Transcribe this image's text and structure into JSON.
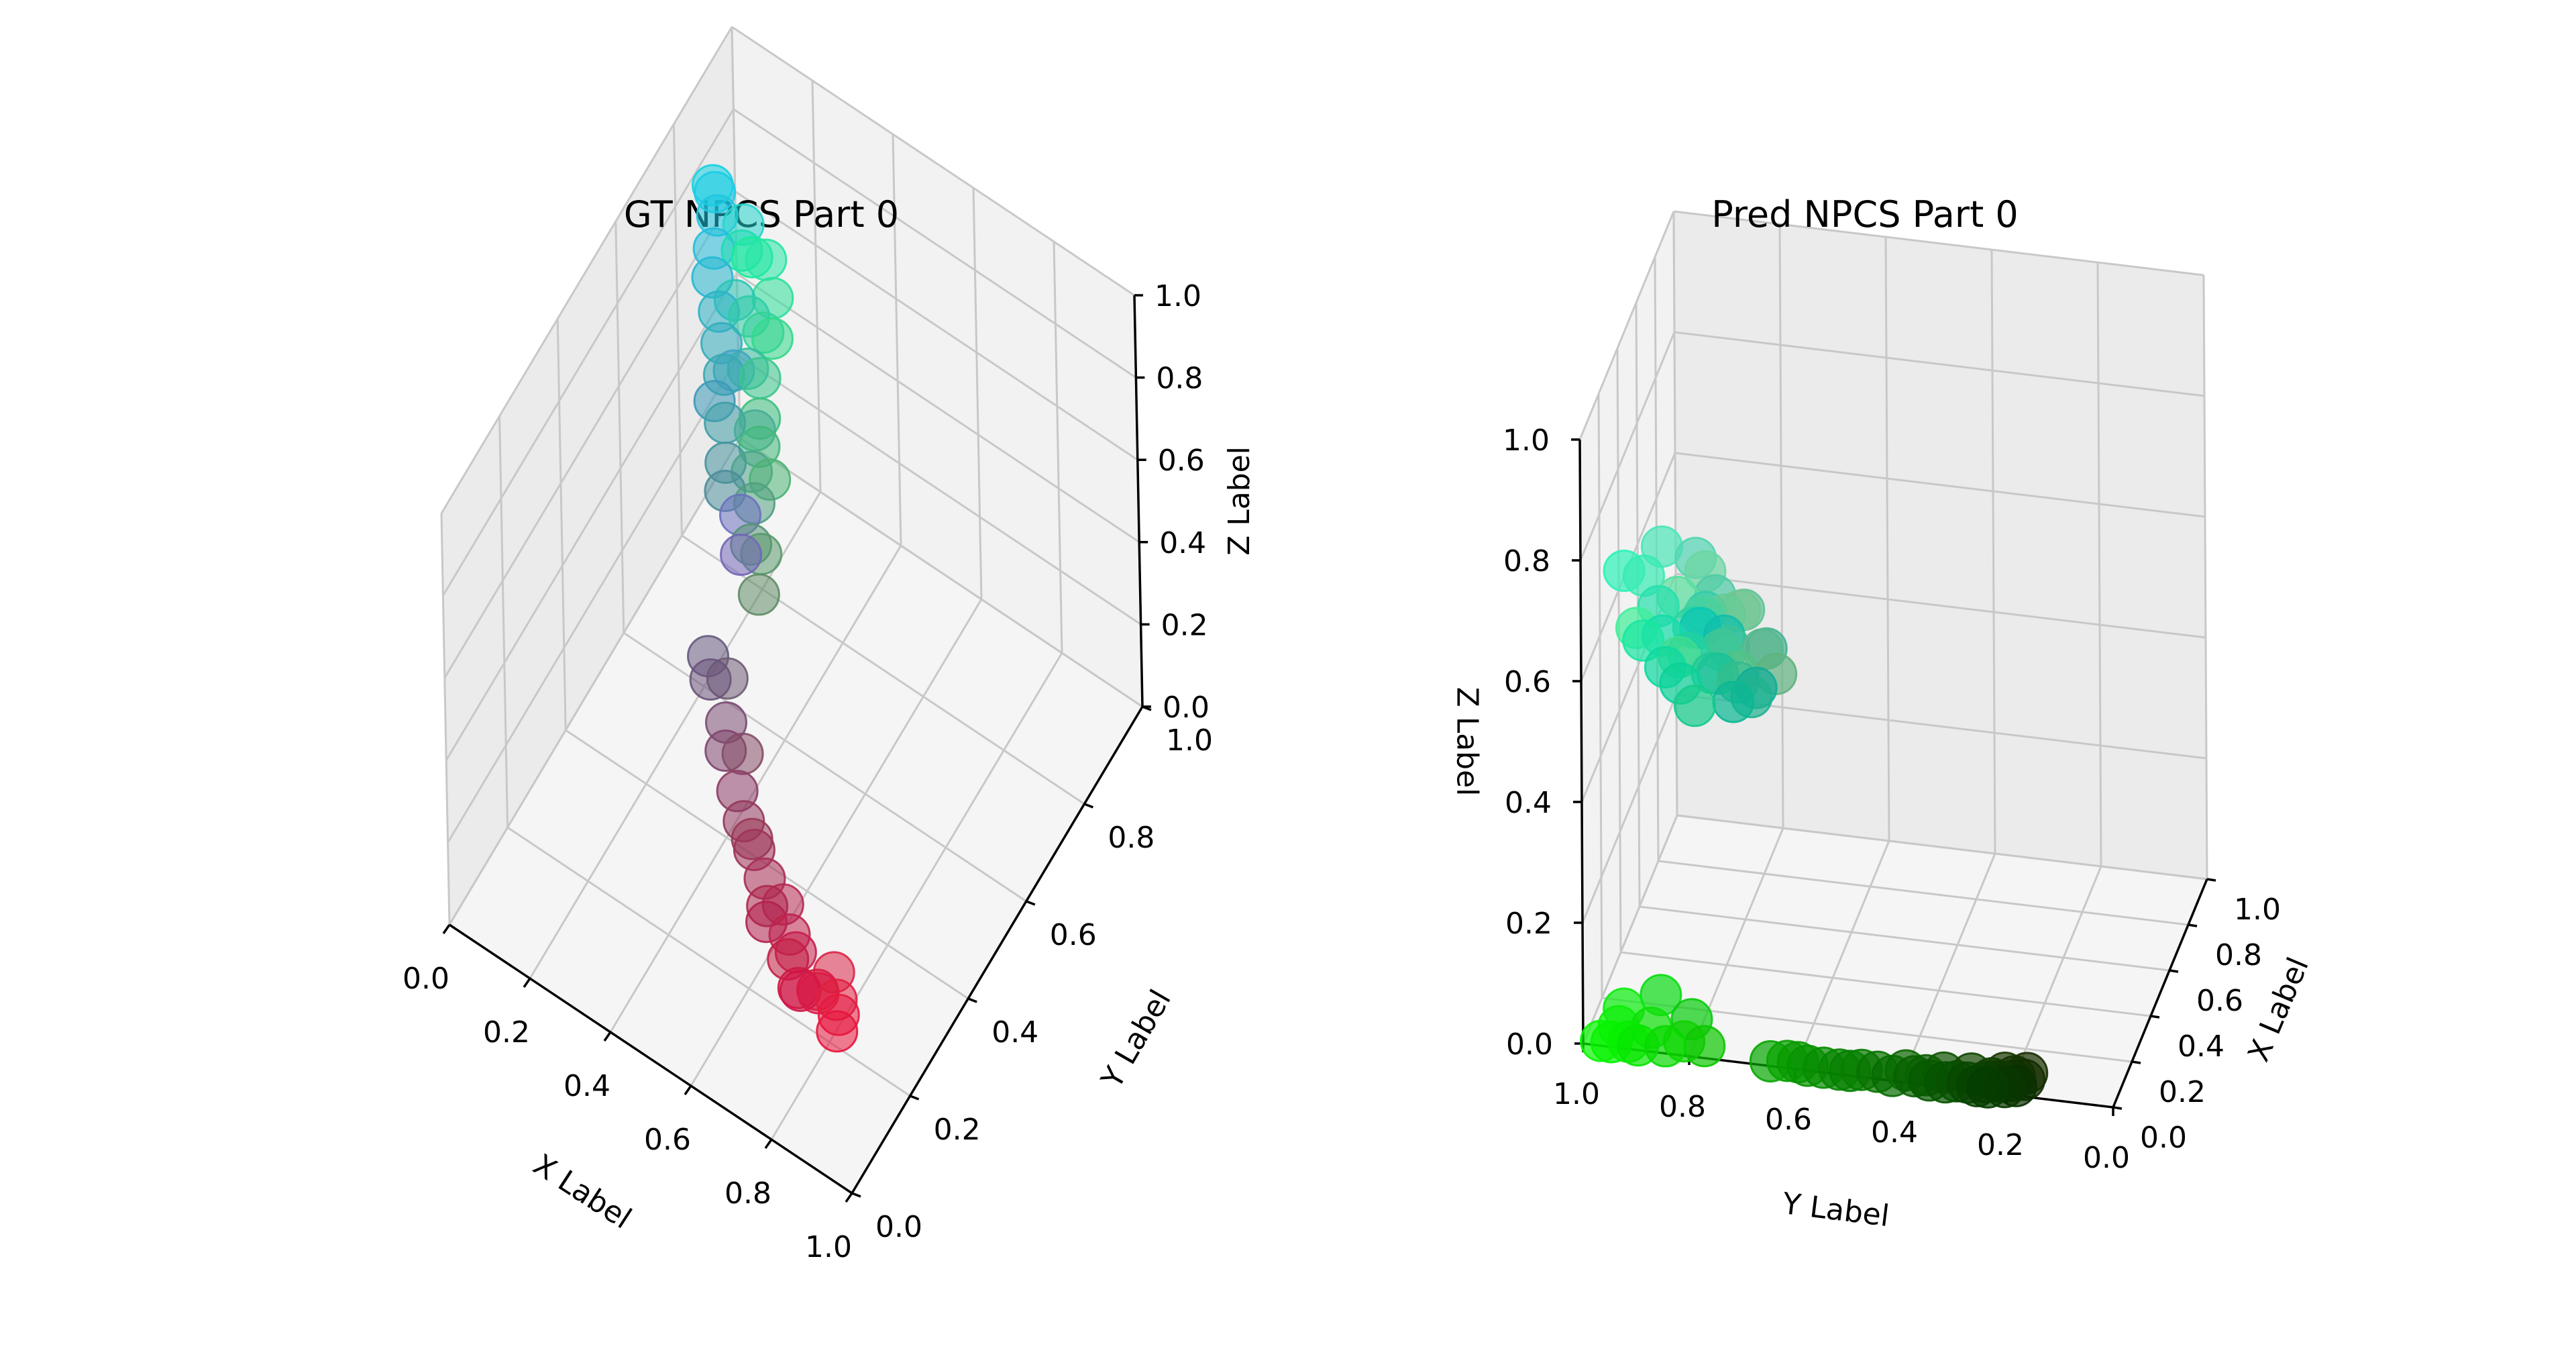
{
  "chart_data": [
    {
      "type": "scatter",
      "subtype": "3d",
      "title": "GT NPCS Part 0",
      "xlabel": "X Label",
      "ylabel": "Y Label",
      "zlabel": "Z Label",
      "xlim": [
        0,
        1
      ],
      "ylim": [
        0,
        1
      ],
      "zlim": [
        0,
        1
      ],
      "xticks": [
        "0.0",
        "0.2",
        "0.4",
        "0.6",
        "0.8",
        "1.0"
      ],
      "yticks": [
        "0.0",
        "0.2",
        "0.4",
        "0.6",
        "0.8",
        "1.0"
      ],
      "zticks": [
        "0.0",
        "0.2",
        "0.4",
        "0.6",
        "0.8",
        "1.0"
      ],
      "grid": true,
      "marker_alpha": 0.55,
      "point_coloring": "RGB equals (x, y, z) coordinates",
      "points": [
        [
          0.9,
          0.1,
          0.25
        ],
        [
          0.88,
          0.12,
          0.25
        ],
        [
          0.91,
          0.08,
          0.24
        ],
        [
          0.85,
          0.1,
          0.27
        ],
        [
          0.82,
          0.08,
          0.28
        ],
        [
          0.8,
          0.1,
          0.25
        ],
        [
          0.86,
          0.14,
          0.28
        ],
        [
          0.78,
          0.12,
          0.3
        ],
        [
          0.75,
          0.14,
          0.3
        ],
        [
          0.7,
          0.13,
          0.31
        ],
        [
          0.72,
          0.16,
          0.33
        ],
        [
          0.66,
          0.18,
          0.33
        ],
        [
          0.62,
          0.2,
          0.35
        ],
        [
          0.58,
          0.22,
          0.37
        ],
        [
          0.55,
          0.24,
          0.4
        ],
        [
          0.5,
          0.27,
          0.43
        ],
        [
          0.48,
          0.3,
          0.45
        ],
        [
          0.42,
          0.33,
          0.48
        ],
        [
          0.4,
          0.35,
          0.5
        ],
        [
          0.45,
          0.4,
          0.72
        ],
        [
          0.42,
          0.44,
          0.75
        ],
        [
          0.3,
          0.55,
          0.6
        ],
        [
          0.28,
          0.58,
          0.62
        ],
        [
          0.25,
          0.62,
          0.65
        ],
        [
          0.22,
          0.66,
          0.7
        ],
        [
          0.2,
          0.68,
          0.74
        ],
        [
          0.18,
          0.7,
          0.78
        ],
        [
          0.15,
          0.72,
          0.82
        ],
        [
          0.14,
          0.74,
          0.86
        ],
        [
          0.12,
          0.78,
          0.88
        ],
        [
          0.1,
          0.8,
          0.9
        ],
        [
          0.08,
          0.82,
          0.88
        ],
        [
          0.16,
          0.78,
          0.7
        ],
        [
          0.18,
          0.8,
          0.65
        ],
        [
          0.2,
          0.82,
          0.6
        ],
        [
          0.22,
          0.78,
          0.55
        ],
        [
          0.24,
          0.75,
          0.5
        ],
        [
          0.26,
          0.72,
          0.48
        ],
        [
          0.2,
          0.85,
          0.55
        ],
        [
          0.18,
          0.88,
          0.6
        ],
        [
          0.15,
          0.9,
          0.65
        ],
        [
          0.12,
          0.86,
          0.7
        ],
        [
          0.1,
          0.92,
          0.6
        ],
        [
          0.3,
          0.7,
          0.45
        ],
        [
          0.28,
          0.68,
          0.58
        ],
        [
          0.32,
          0.62,
          0.5
        ],
        [
          0.35,
          0.6,
          0.42
        ],
        [
          0.24,
          0.6,
          0.72
        ],
        [
          0.26,
          0.64,
          0.76
        ],
        [
          0.14,
          0.84,
          0.8
        ],
        [
          0.38,
          0.55,
          0.4
        ],
        [
          0.34,
          0.58,
          0.46
        ],
        [
          0.3,
          0.64,
          0.54
        ],
        [
          0.22,
          0.74,
          0.62
        ],
        [
          0.52,
          0.3,
          0.4
        ],
        [
          0.6,
          0.22,
          0.34
        ],
        [
          0.68,
          0.16,
          0.3
        ],
        [
          0.76,
          0.12,
          0.27
        ],
        [
          0.84,
          0.11,
          0.26
        ],
        [
          0.44,
          0.36,
          0.46
        ]
      ]
    },
    {
      "type": "scatter",
      "subtype": "3d",
      "title": "Pred NPCS Part 0",
      "xlabel": "X Label",
      "ylabel": "Y Label",
      "zlabel": "Z Label",
      "xlim": [
        0,
        1
      ],
      "ylim": [
        0,
        1
      ],
      "zlim": [
        0,
        1
      ],
      "xticks": [
        "0.0",
        "0.2",
        "0.4",
        "0.6",
        "0.8",
        "1.0"
      ],
      "yticks": [
        "0.0",
        "0.2",
        "0.4",
        "0.6",
        "0.8",
        "1.0"
      ],
      "zticks": [
        "0.0",
        "0.2",
        "0.4",
        "0.6",
        "0.8",
        "1.0"
      ],
      "grid": true,
      "marker_alpha": 0.7,
      "point_coloring": "RGB equals (x, y, z) coordinates",
      "points": [
        [
          0.02,
          0.95,
          0.0
        ],
        [
          0.03,
          0.92,
          0.0
        ],
        [
          0.02,
          0.9,
          0.0
        ],
        [
          0.04,
          0.93,
          0.05
        ],
        [
          0.05,
          0.88,
          0.02
        ],
        [
          0.03,
          0.85,
          0.0
        ],
        [
          0.04,
          0.86,
          0.08
        ],
        [
          0.06,
          0.82,
          0.0
        ],
        [
          0.03,
          0.8,
          0.05
        ],
        [
          0.05,
          0.78,
          0.0
        ],
        [
          0.04,
          0.94,
          0.02
        ],
        [
          0.02,
          0.97,
          0.0
        ],
        [
          0.03,
          0.6,
          0.0
        ],
        [
          0.02,
          0.55,
          0.0
        ],
        [
          0.03,
          0.48,
          0.0
        ],
        [
          0.02,
          0.42,
          0.0
        ],
        [
          0.03,
          0.38,
          0.0
        ],
        [
          0.02,
          0.32,
          0.0
        ],
        [
          0.03,
          0.28,
          0.0
        ],
        [
          0.04,
          0.25,
          0.0
        ],
        [
          0.03,
          0.45,
          0.0
        ],
        [
          0.02,
          0.5,
          0.0
        ],
        [
          0.02,
          0.35,
          0.0
        ],
        [
          0.03,
          0.3,
          0.0
        ],
        [
          0.02,
          0.26,
          0.0
        ],
        [
          0.05,
          0.22,
          0.0
        ],
        [
          0.06,
          0.2,
          0.0
        ],
        [
          0.07,
          0.18,
          0.0
        ],
        [
          0.08,
          0.2,
          0.0
        ],
        [
          0.06,
          0.24,
          0.0
        ],
        [
          0.05,
          0.4,
          0.0
        ],
        [
          0.06,
          0.33,
          0.0
        ],
        [
          0.07,
          0.28,
          0.0
        ],
        [
          0.02,
          0.52,
          0.0
        ],
        [
          0.02,
          0.58,
          0.0
        ],
        [
          0.03,
          0.62,
          0.0
        ],
        [
          0.02,
          0.24,
          0.0
        ],
        [
          0.03,
          0.21,
          0.0
        ],
        [
          0.04,
          0.19,
          0.0
        ],
        [
          0.05,
          0.23,
          0.0
        ],
        [
          0.09,
          0.22,
          0.0
        ],
        [
          0.02,
          0.65,
          0.0
        ],
        [
          0.1,
          0.18,
          0.0
        ],
        [
          0.04,
          0.36,
          0.0
        ],
        [
          0.3,
          0.8,
          0.65
        ],
        [
          0.28,
          0.82,
          0.62
        ],
        [
          0.25,
          0.78,
          0.58
        ],
        [
          0.32,
          0.84,
          0.7
        ],
        [
          0.22,
          0.76,
          0.6
        ],
        [
          0.2,
          0.8,
          0.66
        ],
        [
          0.35,
          0.88,
          0.62
        ],
        [
          0.18,
          0.82,
          0.64
        ],
        [
          0.3,
          0.9,
          0.72
        ],
        [
          0.25,
          0.86,
          0.56
        ],
        [
          0.35,
          0.72,
          0.55
        ],
        [
          0.38,
          0.76,
          0.6
        ],
        [
          0.15,
          0.78,
          0.58
        ],
        [
          0.12,
          0.82,
          0.62
        ],
        [
          0.4,
          0.8,
          0.58
        ],
        [
          0.2,
          0.74,
          0.55
        ],
        [
          0.1,
          0.76,
          0.6
        ],
        [
          0.28,
          0.7,
          0.58
        ],
        [
          0.42,
          0.84,
          0.64
        ],
        [
          0.45,
          0.78,
          0.57
        ],
        [
          0.15,
          0.88,
          0.68
        ],
        [
          0.22,
          0.92,
          0.7
        ],
        [
          0.18,
          0.95,
          0.72
        ],
        [
          0.25,
          0.94,
          0.6
        ],
        [
          0.32,
          0.76,
          0.52
        ],
        [
          0.38,
          0.7,
          0.5
        ],
        [
          0.08,
          0.8,
          0.55
        ],
        [
          0.05,
          0.85,
          0.62
        ],
        [
          0.12,
          0.7,
          0.56
        ],
        [
          0.06,
          0.68,
          0.6
        ],
        [
          0.04,
          0.72,
          0.58
        ],
        [
          0.04,
          0.82,
          0.6
        ],
        [
          0.03,
          0.78,
          0.7
        ],
        [
          0.06,
          0.74,
          0.68
        ],
        [
          0.08,
          0.86,
          0.66
        ],
        [
          0.1,
          0.9,
          0.64
        ]
      ]
    }
  ]
}
